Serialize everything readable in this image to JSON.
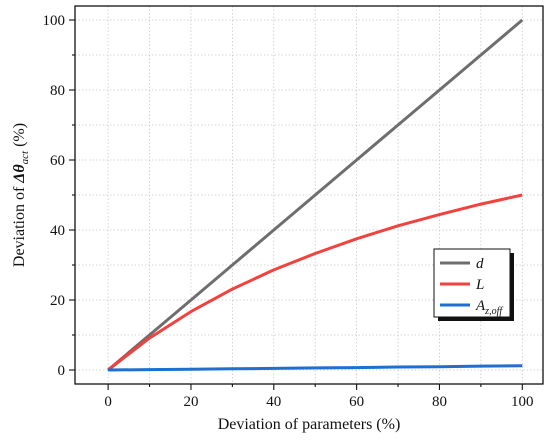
{
  "chart_data": {
    "type": "line",
    "title": "",
    "xlabel": "Deviation of parameters (%)",
    "ylabel": {
      "prefix": "Deviation of ",
      "symbol": "Δθ",
      "subscript": "act",
      "suffix": " (%)"
    },
    "xlim": [
      -8,
      105
    ],
    "ylim": [
      -4,
      104
    ],
    "xticks": [
      0,
      20,
      40,
      60,
      80,
      100
    ],
    "yticks": [
      0,
      20,
      40,
      60,
      80,
      100
    ],
    "grid": true,
    "legend_position": "right",
    "series": [
      {
        "name": "d",
        "color": "#6e6e6e",
        "x": [
          0,
          10,
          20,
          30,
          40,
          50,
          60,
          70,
          80,
          90,
          100
        ],
        "y": [
          0,
          10,
          20,
          30,
          40,
          50,
          60,
          70,
          80,
          90,
          100
        ]
      },
      {
        "name": "L",
        "name_sub": "",
        "color": "#f0423f",
        "x": [
          0,
          10,
          20,
          30,
          40,
          50,
          60,
          70,
          80,
          90,
          100
        ],
        "y": [
          0,
          9.1,
          16.7,
          23.1,
          28.6,
          33.3,
          37.5,
          41.2,
          44.4,
          47.4,
          50.0
        ]
      },
      {
        "name": "A",
        "name_sub": "z,off",
        "color": "#1f6fd1",
        "x": [
          0,
          10,
          20,
          30,
          40,
          50,
          60,
          70,
          80,
          90,
          100
        ],
        "y": [
          0,
          0.1,
          0.2,
          0.35,
          0.45,
          0.6,
          0.7,
          0.85,
          0.95,
          1.1,
          1.2
        ]
      }
    ]
  }
}
